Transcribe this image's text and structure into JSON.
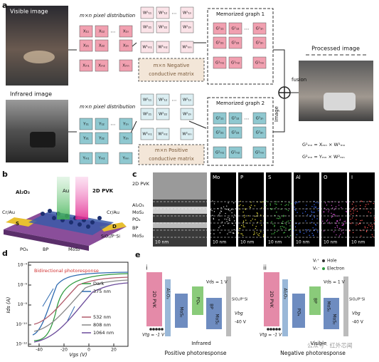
{
  "panel_a": {
    "label": "a",
    "visible_image": "Visible image",
    "infrared_image": "Infrared image",
    "pixel_distribution": [
      "m×n pixel distribution",
      "m×n pixel distribution"
    ],
    "memorized_graph": [
      "Memorized graph 1",
      "Memorized graph 2"
    ],
    "negative_matrix": [
      "m×n Negative",
      "conductive matrix"
    ],
    "positive_matrix": [
      "m×n Positive",
      "conductive matrix"
    ],
    "processed_image": "Processed image",
    "image_fusion": [
      "Image",
      "fusion"
    ],
    "equations": [
      "G¹ₘₙ = Xₘₙ × W¹ₘₙ",
      "G²ₘₙ = Yₘₙ × W²ₘₙ"
    ],
    "matrices": [
      [
        "X₁₁",
        "X₁₂",
        "X₁ₙ",
        "X₂₁",
        "X₂₂",
        "X₂ₙ",
        "Xₘ₁",
        "Xₘ₂",
        "Xₘₙ"
      ],
      [
        "W¹₁₁",
        "W¹₁₂",
        "W¹₁ₙ",
        "W¹₂₁",
        "W¹₂₂",
        "W¹₂ₙ",
        "W¹ₘ₁",
        "W¹ₘ₂",
        "W¹ₘₙ"
      ],
      [
        "G¹₁₁",
        "G¹₁₂",
        "G¹₁ₙ",
        "G¹₂₁",
        "G¹₂₂",
        "G¹₂ₙ",
        "G¹ₘ₁",
        "G¹ₘ₂",
        "G¹ₘₙ"
      ],
      [
        "Y₁₁",
        "Y₁₂",
        "Y₁ₙ",
        "Y₂₁",
        "Y₂₂",
        "Y₂ₙ",
        "Yₘ₁",
        "Yₘ₂",
        "Yₘₙ"
      ],
      [
        "W²₁₁",
        "W²₁₂",
        "W²₁ₙ",
        "W²₂₁",
        "W²₂₂",
        "W²₂ₙ",
        "W²ₘ₁",
        "W²ₘ₂",
        "W²ₘₙ"
      ],
      [
        "G²₁₁",
        "G²₁₂",
        "G²₁ₙ",
        "G²₂₁",
        "G²₂₂",
        "G²₂ₙ",
        "G²ₘ₁",
        "G²ₘ₂",
        "G²ₘₙ"
      ]
    ]
  },
  "panel_b": {
    "label": "b",
    "layers": [
      "Al₂O₃",
      "Au",
      "2D PVK",
      "Cr/Au",
      "Cr/Au",
      "S",
      "D",
      "PO₄",
      "BP",
      "MoS₂",
      "SiO₂/P⁺Si"
    ]
  },
  "panel_c": {
    "label": "c",
    "layers": [
      "2D PVK",
      "Al₂O₃",
      "MoS₂",
      "PO₄",
      "BP",
      "MoS₂"
    ],
    "elements": [
      "Mo",
      "P",
      "S",
      "Al",
      "O",
      "I"
    ],
    "scale_bars": [
      "10 nm",
      "10 nm",
      "10 nm",
      "10 nm",
      "10 nm",
      "10 nm",
      "10 nm"
    ]
  },
  "panel_d": {
    "label": "d",
    "annotation": "Bidirectional photoresponse",
    "y_label": "Ids (A)",
    "x_label": "Vgs (V)",
    "yticks": [
      "10⁻⁴",
      "10⁻⁶",
      "10⁻⁸",
      "10⁻¹⁰",
      "10⁻¹²"
    ],
    "xticks": [
      "-40",
      "-20",
      "0",
      "20"
    ],
    "legend": [
      "Dark",
      "375 nm",
      "532 nm",
      "808 nm",
      "1064 nm"
    ]
  },
  "panel_e": {
    "label": "e",
    "sub": [
      {
        "label": "i",
        "layers": [
          "2D PVK",
          "Al₂O₃",
          "MoS₂",
          "PO₄",
          "BP",
          "MoS₂"
        ],
        "vds": "Vds = 1 V",
        "vtg": "Vtg = -1 V",
        "vbg": [
          "Vbg",
          "-40 V"
        ],
        "substrate": "SiO₂/P⁺Si",
        "light": "Infrared",
        "response": "Positive photoresponse"
      },
      {
        "label": "ii",
        "layers": [
          "2D PVK",
          "Al₂O₃",
          "PO₄",
          "BP",
          "MoS₂",
          "MoS₂"
        ],
        "vds": "Vds = 1 V",
        "vtg": "Vtg = -1 V",
        "vbg": [
          "Vbg",
          "-40 V"
        ],
        "substrate": "SiO₂/P⁺Si",
        "light": "Visible",
        "response": "Negative photoresponse"
      }
    ],
    "legend": [
      "Vₜ⁺",
      "Hole",
      "Vₕ⁻",
      "Electron"
    ],
    "watermark": "公众号 · 红外芯闻"
  }
}
